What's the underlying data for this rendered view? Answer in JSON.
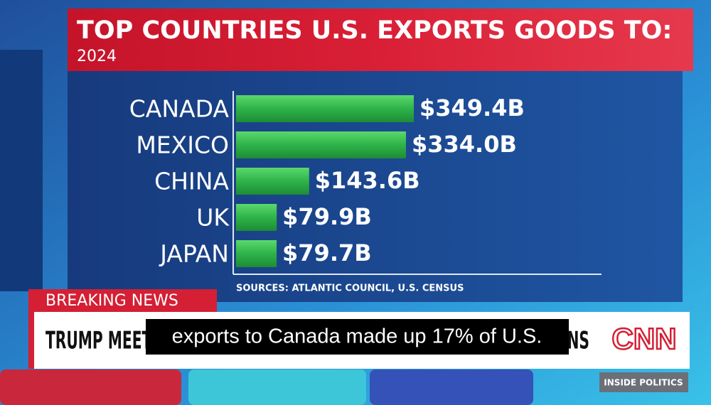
{
  "chart_data": {
    "type": "bar",
    "orientation": "horizontal",
    "title": "TOP COUNTRIES U.S. EXPORTS GOODS TO:",
    "subtitle": "2024",
    "categories": [
      "CANADA",
      "MEXICO",
      "CHINA",
      "UK",
      "JAPAN"
    ],
    "values": [
      349.4,
      334.0,
      143.6,
      79.9,
      79.7
    ],
    "value_labels": [
      "$349.4B",
      "$334.0B",
      "$143.6B",
      "$79.9B",
      "$79.7B"
    ],
    "color": "#2eb34a",
    "source": "SOURCES: ATLANTIC COUNCIL, U.S. CENSUS"
  },
  "broadcast": {
    "banner": "BREAKING NEWS",
    "ticker": "TRUMP MEETS WITH NEW CANADIAN PM AMID HISTORIC TENSIONS",
    "caption": "exports to Canada made up 17% of U.S.",
    "logo": "CNN",
    "show": "INSIDE POLITICS"
  }
}
